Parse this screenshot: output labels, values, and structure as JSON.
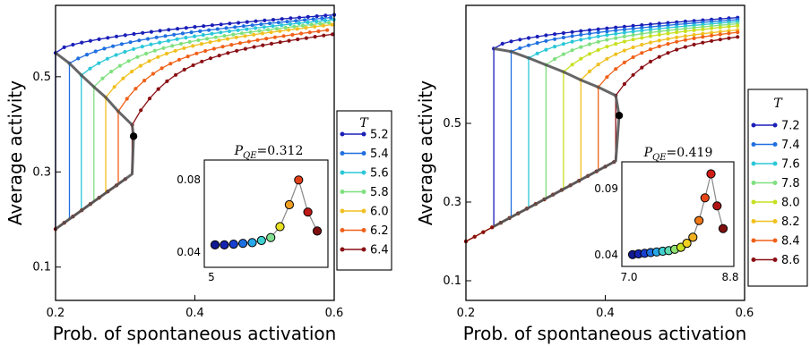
{
  "chart_data": [
    {
      "type": "line",
      "title": "",
      "xlabel": "Prob. of spontaneous activation",
      "ylabel": "Average activity",
      "xlim": [
        0.2,
        0.6
      ],
      "ylim": [
        0.03,
        0.65
      ],
      "xticks": [
        0.2,
        0.4,
        0.6
      ],
      "xtick_labels": [
        "0.2",
        "0.4",
        "0.6"
      ],
      "yticks": [
        0.1,
        0.3,
        0.5
      ],
      "ytick_labels": [
        "0.1",
        "0.3",
        "0.5"
      ],
      "legend": {
        "title": "T",
        "position": "right-outside",
        "entries": [
          "5.2",
          "5.4",
          "5.6",
          "5.8",
          "6.0",
          "6.2",
          "6.4"
        ]
      },
      "series": [
        {
          "name": "5.2",
          "color": "#1a1fb8",
          "x0": 0.2,
          "y0": 0.55,
          "x1": 0.6,
          "y1": 0.63,
          "xjump": 0.2,
          "ylow": 0.18
        },
        {
          "name": "5.4",
          "color": "#1f6fe0",
          "x0": 0.2,
          "y0": 0.53,
          "x1": 0.6,
          "y1": 0.625,
          "xjump": 0.22,
          "ylow": 0.19
        },
        {
          "name": "5.6",
          "color": "#2bc7d8",
          "x0": 0.2,
          "y0": 0.515,
          "x1": 0.6,
          "y1": 0.62,
          "xjump": 0.237,
          "ylow": 0.205
        },
        {
          "name": "5.8",
          "color": "#7fe07f",
          "x0": 0.2,
          "y0": 0.5,
          "x1": 0.6,
          "y1": 0.615,
          "xjump": 0.255,
          "ylow": 0.215
        },
        {
          "name": "6.0",
          "color": "#f0c020",
          "x0": 0.2,
          "y0": 0.49,
          "x1": 0.6,
          "y1": 0.61,
          "xjump": 0.272,
          "ylow": 0.235
        },
        {
          "name": "6.2",
          "color": "#f06018",
          "x0": 0.2,
          "y0": 0.47,
          "x1": 0.6,
          "y1": 0.6,
          "xjump": 0.29,
          "ylow": 0.26
        },
        {
          "name": "6.4",
          "color": "#8a0f14",
          "x0": 0.2,
          "y0": 0.45,
          "x1": 0.6,
          "y1": 0.59,
          "xjump": 0.31,
          "ylow": 0.285
        }
      ],
      "critical_point": {
        "x": 0.312,
        "y": 0.375
      },
      "inset": {
        "title_text": "P",
        "title_sub": "QE",
        "title_value": "=0.312",
        "xtick_labels": [
          "5"
        ],
        "ytick_labels": [
          "0.04",
          "0.08"
        ],
        "ylim": [
          0.03,
          0.095
        ],
        "points": [
          {
            "t": 0,
            "y": 0.0405,
            "color": "#111a90"
          },
          {
            "t": 1,
            "y": 0.0405,
            "color": "#1424b0"
          },
          {
            "t": 2,
            "y": 0.041,
            "color": "#1840d0"
          },
          {
            "t": 3,
            "y": 0.0415,
            "color": "#1e70e0"
          },
          {
            "t": 4,
            "y": 0.042,
            "color": "#28a8e8"
          },
          {
            "t": 5,
            "y": 0.0435,
            "color": "#40d0d0"
          },
          {
            "t": 6,
            "y": 0.0455,
            "color": "#80e090"
          },
          {
            "t": 7,
            "y": 0.053,
            "color": "#e8e020"
          },
          {
            "t": 8,
            "y": 0.068,
            "color": "#f0a020"
          },
          {
            "t": 9,
            "y": 0.085,
            "color": "#e04018"
          },
          {
            "t": 10,
            "y": 0.063,
            "color": "#c01818"
          },
          {
            "t": 11,
            "y": 0.05,
            "color": "#801010"
          }
        ]
      }
    },
    {
      "type": "line",
      "title": "",
      "xlabel": "Prob. of spontaneous activation",
      "ylabel": "Average activity",
      "xlim": [
        0.2,
        0.6
      ],
      "ylim": [
        0.05,
        0.8
      ],
      "xticks": [
        0.2,
        0.4,
        0.6
      ],
      "xtick_labels": [
        "0.2",
        "0.4",
        "0.6"
      ],
      "yticks": [
        0.1,
        0.3,
        0.5
      ],
      "ytick_labels": [
        "0.1",
        "0.3",
        "0.5"
      ],
      "legend": {
        "title": "T",
        "position": "right-outside",
        "entries": [
          "7.2",
          "7.4",
          "7.6",
          "7.8",
          "8.0",
          "8.2",
          "8.4",
          "8.6"
        ]
      },
      "series": [
        {
          "name": "7.2",
          "color": "#1a1fb8",
          "x0": 0.24,
          "y0": 0.69,
          "x1": 0.6,
          "y1": 0.77,
          "xjump": 0.24,
          "ylow": 0.24
        },
        {
          "name": "7.4",
          "color": "#1f6fe0",
          "x0": 0.24,
          "y0": 0.68,
          "x1": 0.6,
          "y1": 0.765,
          "xjump": 0.265,
          "ylow": 0.255
        },
        {
          "name": "7.6",
          "color": "#2bc7d8",
          "x0": 0.24,
          "y0": 0.67,
          "x1": 0.6,
          "y1": 0.76,
          "xjump": 0.29,
          "ylow": 0.27
        },
        {
          "name": "7.8",
          "color": "#7fe07f",
          "x0": 0.24,
          "y0": 0.66,
          "x1": 0.6,
          "y1": 0.755,
          "xjump": 0.315,
          "ylow": 0.29
        },
        {
          "name": "8.0",
          "color": "#c8e020",
          "x0": 0.24,
          "y0": 0.65,
          "x1": 0.6,
          "y1": 0.75,
          "xjump": 0.34,
          "ylow": 0.31
        },
        {
          "name": "8.2",
          "color": "#f0c020",
          "x0": 0.24,
          "y0": 0.64,
          "x1": 0.6,
          "y1": 0.74,
          "xjump": 0.365,
          "ylow": 0.335
        },
        {
          "name": "8.4",
          "color": "#f06018",
          "x0": 0.24,
          "y0": 0.63,
          "x1": 0.6,
          "y1": 0.735,
          "xjump": 0.39,
          "ylow": 0.36
        },
        {
          "name": "8.6",
          "color": "#8a0f14",
          "x0": 0.24,
          "y0": 0.62,
          "x1": 0.6,
          "y1": 0.725,
          "xjump": 0.415,
          "ylow": 0.39
        }
      ],
      "critical_point": {
        "x": 0.42,
        "y": 0.52
      },
      "inset": {
        "title_text": "P",
        "title_sub": "QE",
        "title_value": "=0.419",
        "xtick_labels": [
          "7.0",
          "8.8"
        ],
        "ytick_labels": [
          "0.04",
          "0.09"
        ],
        "ylim": [
          0.033,
          0.102
        ],
        "points": [
          {
            "t": 0,
            "y": 0.0365,
            "color": "#111a90"
          },
          {
            "t": 1,
            "y": 0.037,
            "color": "#1424b0"
          },
          {
            "t": 2,
            "y": 0.0375,
            "color": "#1840d0"
          },
          {
            "t": 3,
            "y": 0.038,
            "color": "#1e70e0"
          },
          {
            "t": 4,
            "y": 0.0385,
            "color": "#28a8e8"
          },
          {
            "t": 5,
            "y": 0.039,
            "color": "#40d0d0"
          },
          {
            "t": 6,
            "y": 0.0395,
            "color": "#60d8b0"
          },
          {
            "t": 7,
            "y": 0.0405,
            "color": "#90e070"
          },
          {
            "t": 8,
            "y": 0.042,
            "color": "#c8e020"
          },
          {
            "t": 9,
            "y": 0.045,
            "color": "#f0d020"
          },
          {
            "t": 10,
            "y": 0.0495,
            "color": "#f0b020"
          },
          {
            "t": 11,
            "y": 0.062,
            "color": "#f07818"
          },
          {
            "t": 12,
            "y": 0.079,
            "color": "#e84818"
          },
          {
            "t": 13,
            "y": 0.097,
            "color": "#d01c14"
          },
          {
            "t": 14,
            "y": 0.073,
            "color": "#b01414"
          },
          {
            "t": 15,
            "y": 0.056,
            "color": "#801010"
          }
        ]
      }
    }
  ]
}
